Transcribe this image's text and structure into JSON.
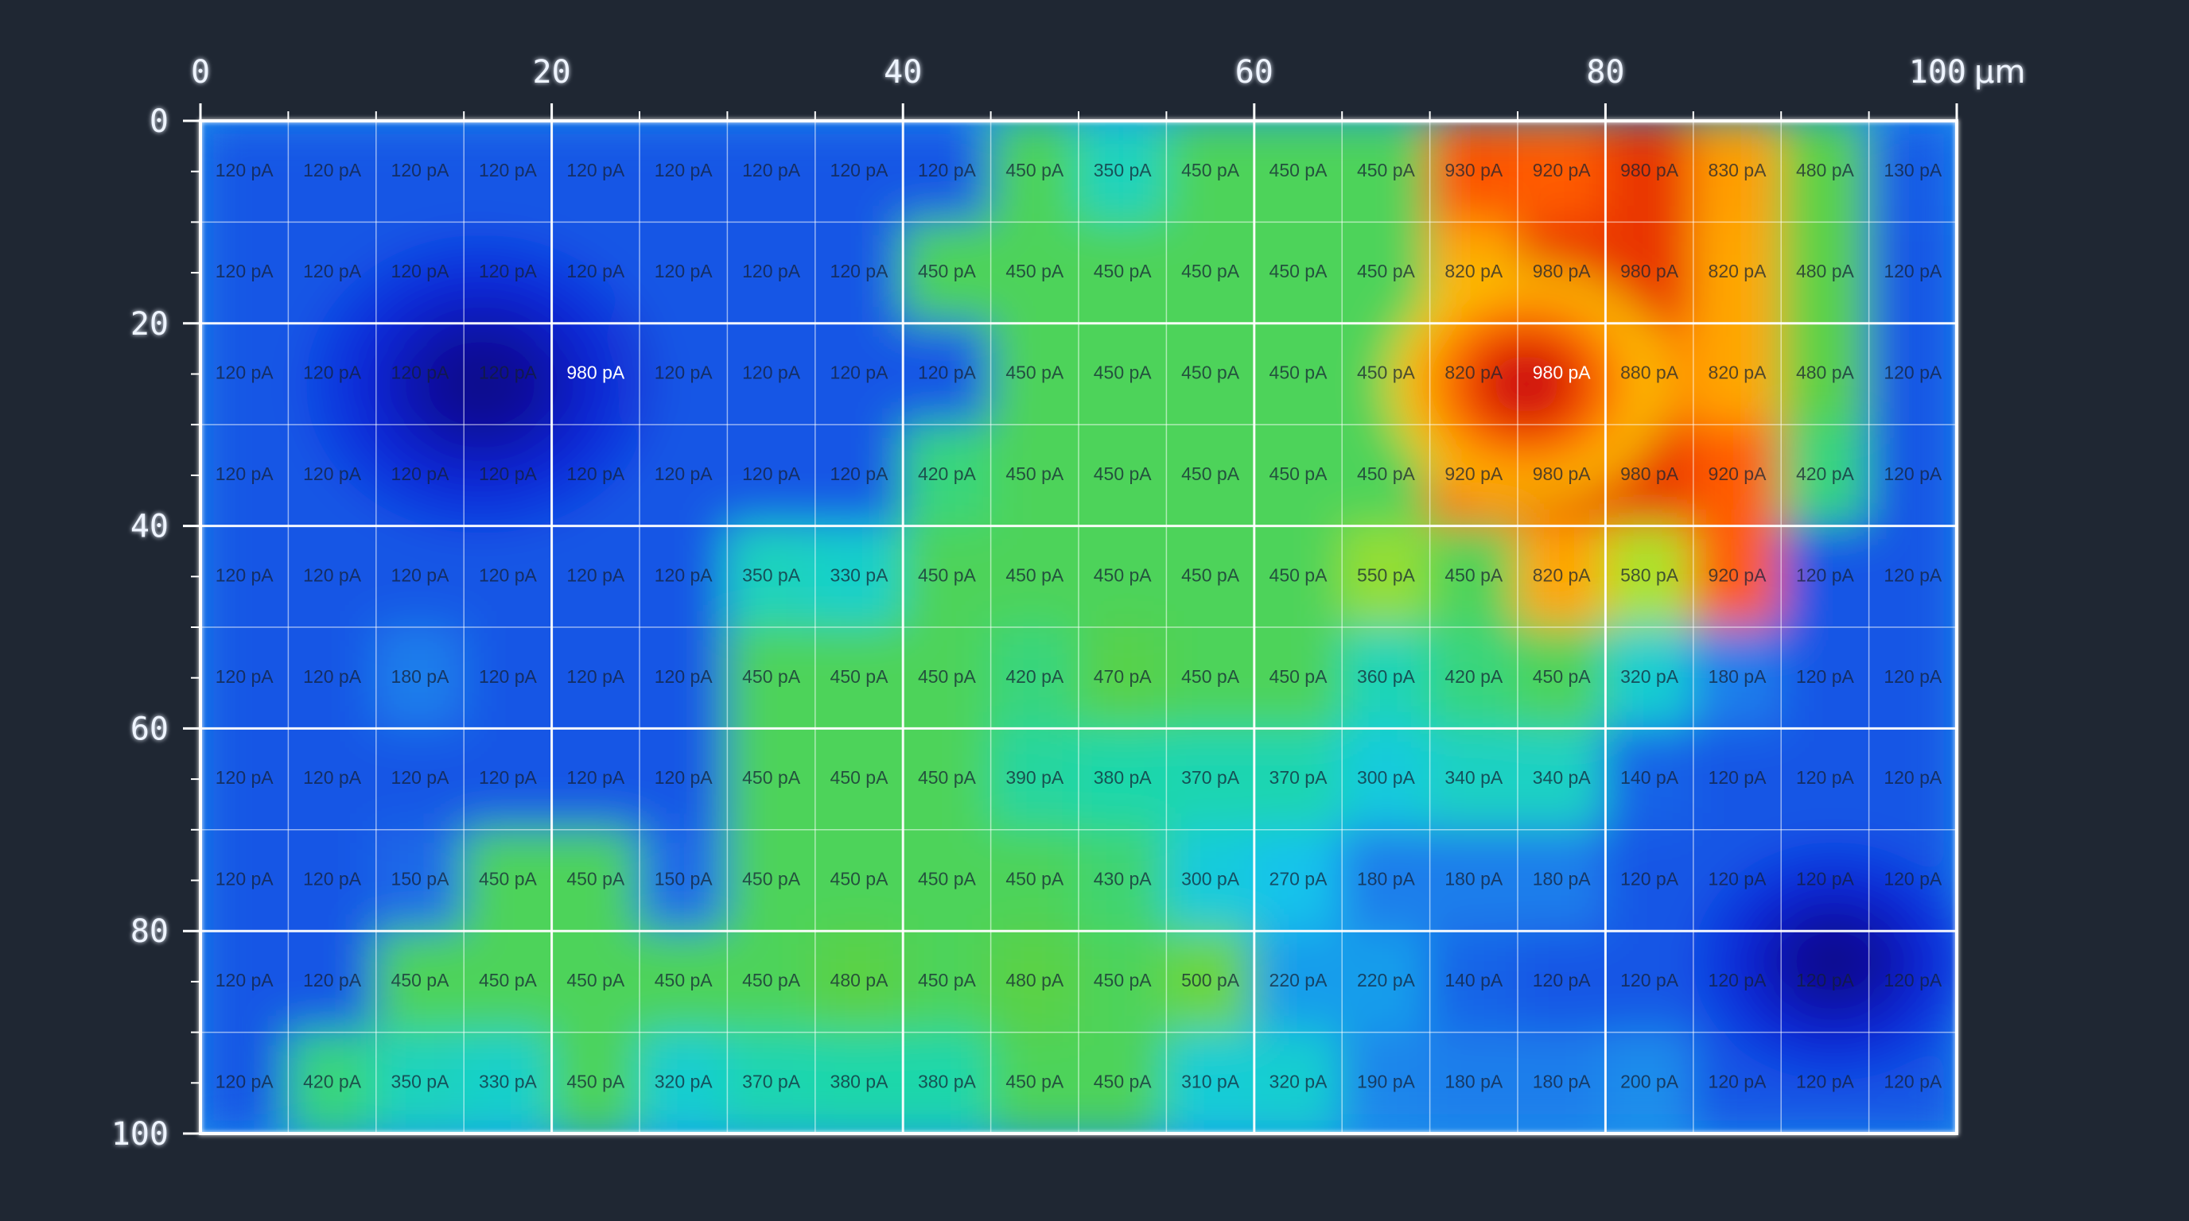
{
  "chart_data": {
    "type": "heatmap",
    "x_ticks": [
      "0",
      "20",
      "40",
      "60",
      "80",
      "100"
    ],
    "x_unit": "µm",
    "y_ticks": [
      "0",
      "20",
      "40",
      "60",
      "80",
      "100"
    ],
    "xlim": [
      0,
      100
    ],
    "ylim": [
      0,
      100
    ],
    "grid": true,
    "columns": 20,
    "rows": 10,
    "cell_unit": "pA",
    "values": [
      [
        120,
        120,
        120,
        120,
        120,
        120,
        120,
        120,
        120,
        450,
        350,
        450,
        450,
        450,
        930,
        920,
        980,
        830,
        480,
        130
      ],
      [
        120,
        120,
        120,
        120,
        120,
        120,
        120,
        120,
        450,
        450,
        450,
        450,
        450,
        450,
        820,
        980,
        980,
        820,
        480,
        120
      ],
      [
        120,
        120,
        120,
        120,
        980,
        120,
        120,
        120,
        120,
        450,
        450,
        450,
        450,
        450,
        820,
        980,
        880,
        820,
        480,
        120
      ],
      [
        120,
        120,
        120,
        120,
        120,
        120,
        120,
        120,
        420,
        450,
        450,
        450,
        450,
        450,
        920,
        980,
        980,
        920,
        420,
        120
      ],
      [
        120,
        120,
        120,
        120,
        120,
        120,
        350,
        330,
        450,
        450,
        450,
        450,
        450,
        550,
        450,
        820,
        580,
        920,
        120,
        120
      ],
      [
        120,
        120,
        180,
        120,
        120,
        120,
        450,
        450,
        450,
        420,
        470,
        450,
        450,
        360,
        420,
        450,
        320,
        180,
        120,
        120
      ],
      [
        120,
        120,
        120,
        120,
        120,
        120,
        450,
        450,
        450,
        390,
        380,
        370,
        370,
        300,
        340,
        340,
        140,
        120,
        120,
        120
      ],
      [
        120,
        120,
        150,
        450,
        450,
        150,
        450,
        450,
        450,
        450,
        430,
        300,
        270,
        180,
        180,
        180,
        120,
        120,
        120,
        120
      ],
      [
        120,
        120,
        450,
        450,
        450,
        450,
        450,
        480,
        450,
        480,
        450,
        500,
        220,
        220,
        140,
        120,
        120,
        120,
        120,
        120
      ],
      [
        120,
        420,
        350,
        330,
        450,
        320,
        370,
        380,
        380,
        450,
        450,
        310,
        320,
        190,
        180,
        180,
        200,
        120,
        120,
        120
      ]
    ],
    "hotspots": [
      {
        "x": 16,
        "y": 26,
        "level": -1.0,
        "spread": 10
      },
      {
        "x": 75.5,
        "y": 26,
        "level": 1.0,
        "spread": 8
      },
      {
        "x": 93,
        "y": 83,
        "level": -1.0,
        "spread": 8
      }
    ]
  }
}
